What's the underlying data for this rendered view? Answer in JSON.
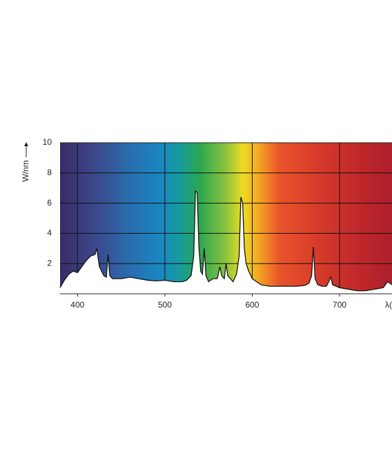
{
  "chart_data": {
    "type": "area",
    "y_label": "W/nm",
    "x_label": "λ(",
    "x": [
      380,
      385,
      390,
      395,
      400,
      405,
      410,
      415,
      420,
      422,
      425,
      430,
      433,
      435,
      437,
      440,
      450,
      460,
      470,
      480,
      490,
      500,
      510,
      520,
      525,
      530,
      533,
      535,
      537,
      539,
      541,
      543,
      545,
      547,
      550,
      555,
      560,
      563,
      565,
      568,
      570,
      572,
      575,
      578,
      582,
      585,
      587,
      589,
      591,
      593,
      596,
      600,
      605,
      610,
      620,
      630,
      640,
      650,
      660,
      665,
      668,
      670,
      672,
      675,
      680,
      685,
      690,
      692,
      700,
      710,
      720,
      730,
      740,
      750,
      755,
      760
    ],
    "values": [
      0.4,
      0.9,
      1.3,
      1.5,
      1.4,
      1.8,
      2.2,
      2.5,
      2.6,
      3.0,
      1.8,
      1.2,
      1.1,
      2.6,
      1.2,
      1.0,
      1.0,
      1.1,
      1.0,
      0.9,
      0.85,
      0.9,
      0.8,
      0.8,
      0.9,
      1.2,
      2.5,
      6.8,
      6.7,
      3.0,
      1.5,
      1.3,
      3.0,
      1.2,
      0.8,
      1.0,
      1.0,
      1.8,
      1.2,
      1.0,
      2.0,
      1.2,
      1.0,
      0.8,
      1.3,
      2.5,
      6.4,
      6.0,
      3.0,
      2.0,
      1.5,
      1.0,
      0.8,
      0.6,
      0.5,
      0.5,
      0.5,
      0.5,
      0.55,
      0.7,
      1.2,
      3.1,
      1.0,
      0.6,
      0.5,
      0.5,
      1.1,
      0.6,
      0.4,
      0.3,
      0.2,
      0.2,
      0.3,
      0.4,
      0.8,
      0.6
    ],
    "color": "#111111",
    "xlim": [
      380,
      760
    ],
    "xticks": [
      400,
      500,
      600,
      700
    ],
    "ylim": [
      0,
      10
    ],
    "yticks": [
      2,
      4,
      6,
      8,
      10
    ],
    "grid": true
  }
}
